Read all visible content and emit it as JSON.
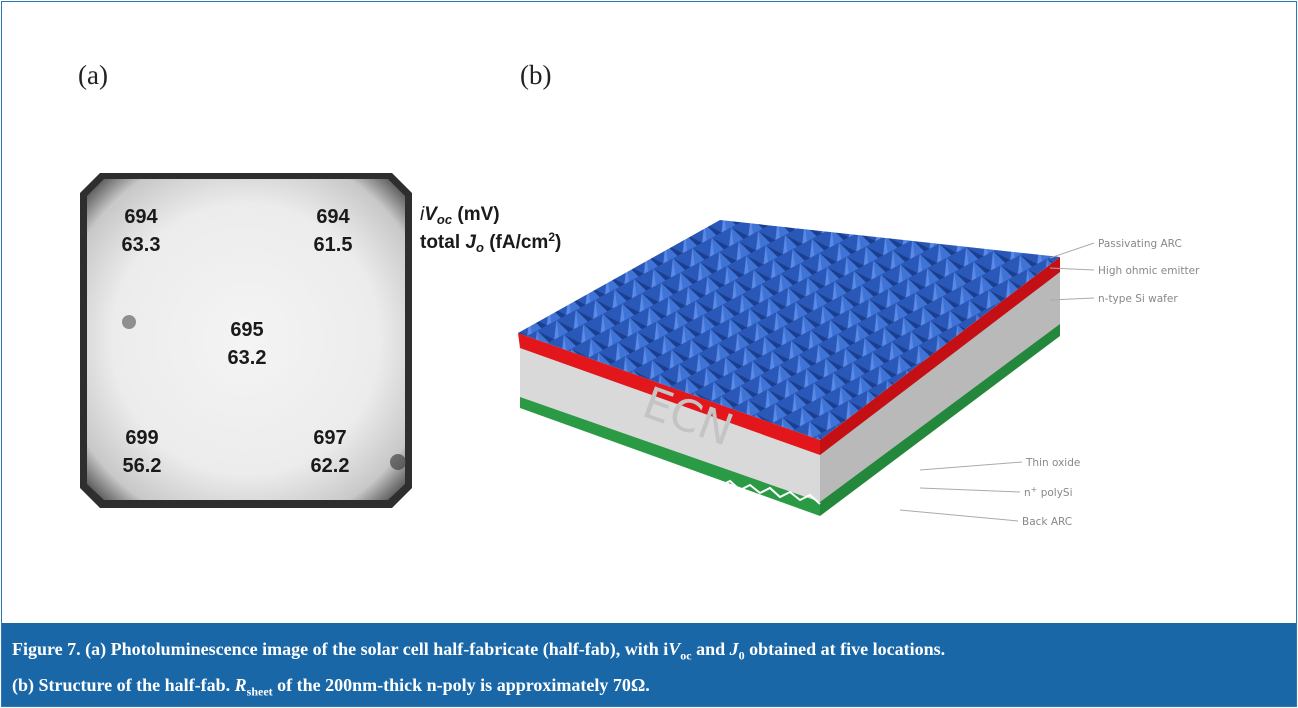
{
  "panels": {
    "a": {
      "label": "(a)"
    },
    "b": {
      "label": "(b)"
    }
  },
  "pl_image": {
    "locations": [
      {
        "voc": "694",
        "jo": "63.3"
      },
      {
        "voc": "694",
        "jo": "61.5"
      },
      {
        "voc": "695",
        "jo": "63.2"
      },
      {
        "voc": "699",
        "jo": "56.2"
      },
      {
        "voc": "697",
        "jo": "62.2"
      }
    ],
    "legend": {
      "line1": [
        "i",
        "V",
        "oc",
        " (mV)"
      ],
      "line2": [
        "total ",
        "J",
        "o",
        " (fA/cm",
        "2",
        ")"
      ]
    }
  },
  "structure": {
    "watermark": "ECN",
    "labels": {
      "top": [
        "Passivating ARC",
        "High ohmic emitter",
        "n-type Si wafer"
      ],
      "bottom": [
        [
          "Thin oxide"
        ],
        [
          "n",
          "+",
          " polySi"
        ],
        [
          "Back ARC"
        ]
      ]
    }
  },
  "caption": {
    "line1": [
      "Figure 7. (a) Photoluminescence image of the solar cell half-fabricate (half-fab), with i",
      "V",
      "oc",
      " and ",
      "J",
      "0",
      " obtained at five locations."
    ],
    "line2": [
      "(b) Structure of the half-fab. ",
      "R",
      "sheet",
      " of the 200nm-thick n-poly is approximately 70Ω."
    ]
  }
}
